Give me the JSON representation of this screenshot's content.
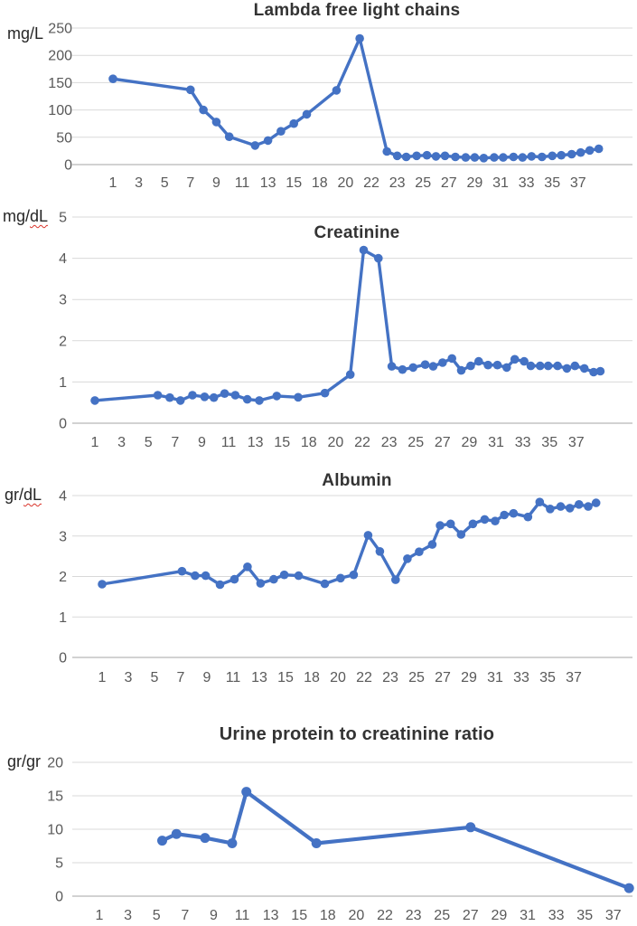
{
  "figure": {
    "background": "#ffffff",
    "accent_color": "#4472C4",
    "gridline_color": "#d9d9d9",
    "axisline_color": "#c4c4c4",
    "tick_color": "#595959",
    "title_color": "#333333",
    "squiggle_color": "#d9342b"
  },
  "chart_data": [
    {
      "type": "line",
      "title": "Lambda free light chains",
      "ylabel": "mg/L",
      "ylabel_plain": "mg/L",
      "ylabel_squiggle": "",
      "xlabel": "",
      "ylim": [
        0,
        250
      ],
      "y_ticks": [
        250,
        200,
        150,
        100,
        50,
        0
      ],
      "x_tick_labels": [
        "1",
        "3",
        "5",
        "7",
        "9",
        "11",
        "13",
        "15",
        "18",
        "20",
        "22",
        "23",
        "25",
        "27",
        "29",
        "31",
        "33",
        "35",
        "37"
      ],
      "grid": true,
      "legend": "none",
      "marker": "circle",
      "series": [
        {
          "name": "Lambda free light chains (mg/L)",
          "points": [
            [
              1,
              157
            ],
            [
              7,
              137
            ],
            [
              8,
              100
            ],
            [
              9,
              78
            ],
            [
              10,
              51
            ],
            [
              12,
              35
            ],
            [
              13,
              44
            ],
            [
              14,
              61
            ],
            [
              15,
              75
            ],
            [
              16,
              92
            ],
            [
              18.3,
              136
            ],
            [
              20.1,
              231
            ],
            [
              22.2,
              24
            ],
            [
              23,
              16
            ],
            [
              23.7,
              14
            ],
            [
              24.5,
              16
            ],
            [
              25.3,
              17
            ],
            [
              26,
              15
            ],
            [
              26.7,
              16
            ],
            [
              27.5,
              14
            ],
            [
              28.3,
              13
            ],
            [
              29,
              13
            ],
            [
              29.7,
              12
            ],
            [
              30.5,
              13
            ],
            [
              31.2,
              13
            ],
            [
              32,
              14
            ],
            [
              32.7,
              13
            ],
            [
              33.4,
              15
            ],
            [
              34.2,
              14
            ],
            [
              35,
              16
            ],
            [
              35.7,
              17
            ],
            [
              36.5,
              19
            ],
            [
              37.2,
              22
            ],
            [
              37.9,
              26
            ],
            [
              38.6,
              29
            ]
          ]
        }
      ]
    },
    {
      "type": "line",
      "title": "Creatinine",
      "ylabel": "mg/dL",
      "ylabel_plain": "mg/",
      "ylabel_squiggle": "dL",
      "xlabel": "",
      "ylim": [
        0,
        5
      ],
      "y_ticks": [
        5,
        4,
        3,
        2,
        1,
        0
      ],
      "x_tick_labels": [
        "1",
        "3",
        "5",
        "7",
        "9",
        "11",
        "13",
        "15",
        "18",
        "20",
        "22",
        "23",
        "25",
        "27",
        "29",
        "31",
        "33",
        "35",
        "37"
      ],
      "grid": true,
      "legend": "none",
      "marker": "circle",
      "series": [
        {
          "name": "Creatinine (mg/dL)",
          "points": [
            [
              1,
              0.55
            ],
            [
              5.7,
              0.68
            ],
            [
              6.6,
              0.62
            ],
            [
              7.4,
              0.55
            ],
            [
              8.3,
              0.68
            ],
            [
              9.2,
              0.64
            ],
            [
              9.9,
              0.62
            ],
            [
              10.7,
              0.72
            ],
            [
              11.5,
              0.68
            ],
            [
              12.4,
              0.58
            ],
            [
              13.3,
              0.55
            ],
            [
              14.6,
              0.66
            ],
            [
              16.2,
              0.63
            ],
            [
              18.2,
              0.73
            ],
            [
              20.1,
              1.18
            ],
            [
              21.1,
              4.2
            ],
            [
              22.2,
              4.0
            ],
            [
              23.2,
              1.38
            ],
            [
              24,
              1.3
            ],
            [
              24.8,
              1.35
            ],
            [
              25.7,
              1.42
            ],
            [
              26.3,
              1.38
            ],
            [
              27,
              1.47
            ],
            [
              27.7,
              1.57
            ],
            [
              28.4,
              1.28
            ],
            [
              29.1,
              1.39
            ],
            [
              29.7,
              1.5
            ],
            [
              30.4,
              1.41
            ],
            [
              31.1,
              1.41
            ],
            [
              31.8,
              1.35
            ],
            [
              32.4,
              1.55
            ],
            [
              33.1,
              1.5
            ],
            [
              33.6,
              1.39
            ],
            [
              34.3,
              1.39
            ],
            [
              34.9,
              1.39
            ],
            [
              35.6,
              1.39
            ],
            [
              36.3,
              1.33
            ],
            [
              36.9,
              1.39
            ],
            [
              37.6,
              1.33
            ],
            [
              38.3,
              1.24
            ],
            [
              38.8,
              1.26
            ]
          ]
        }
      ]
    },
    {
      "type": "line",
      "title": "Albumin",
      "ylabel": "gr/dL",
      "ylabel_plain": "gr/",
      "ylabel_squiggle": "dL",
      "xlabel": "",
      "ylim": [
        0,
        4
      ],
      "y_ticks": [
        4,
        3,
        2,
        1,
        0
      ],
      "x_tick_labels": [
        "1",
        "3",
        "5",
        "7",
        "9",
        "11",
        "13",
        "15",
        "18",
        "20",
        "22",
        "23",
        "25",
        "27",
        "29",
        "31",
        "33",
        "35",
        "37"
      ],
      "grid": true,
      "legend": "none",
      "marker": "circle",
      "series": [
        {
          "name": "Albumin (gr/dL)",
          "points": [
            [
              1,
              1.81
            ],
            [
              7.1,
              2.13
            ],
            [
              8.1,
              2.02
            ],
            [
              8.9,
              2.02
            ],
            [
              10,
              1.8
            ],
            [
              11.1,
              1.93
            ],
            [
              12.1,
              2.24
            ],
            [
              13.1,
              1.83
            ],
            [
              14.1,
              1.93
            ],
            [
              14.9,
              2.04
            ],
            [
              16,
              2.02
            ],
            [
              18,
              1.82
            ],
            [
              19.2,
              1.96
            ],
            [
              20.2,
              2.04
            ],
            [
              21.3,
              3.02
            ],
            [
              22.2,
              2.62
            ],
            [
              23.4,
              1.92
            ],
            [
              24.3,
              2.44
            ],
            [
              25.2,
              2.61
            ],
            [
              26.2,
              2.79
            ],
            [
              26.8,
              3.26
            ],
            [
              27.6,
              3.3
            ],
            [
              28.4,
              3.04
            ],
            [
              29.3,
              3.3
            ],
            [
              30.2,
              3.41
            ],
            [
              31,
              3.37
            ],
            [
              31.7,
              3.52
            ],
            [
              32.4,
              3.56
            ],
            [
              33.5,
              3.47
            ],
            [
              34.4,
              3.84
            ],
            [
              35.2,
              3.67
            ],
            [
              36,
              3.73
            ],
            [
              36.7,
              3.69
            ],
            [
              37.4,
              3.78
            ],
            [
              38.1,
              3.73
            ],
            [
              38.7,
              3.82
            ]
          ]
        }
      ]
    },
    {
      "type": "line",
      "title": "Urine protein to creatinine ratio",
      "ylabel": "gr/gr",
      "ylabel_plain": "gr/gr",
      "ylabel_squiggle": "",
      "xlabel": "",
      "ylim": [
        0,
        20
      ],
      "y_ticks": [
        20,
        15,
        10,
        5,
        0
      ],
      "x_tick_labels": [
        "1",
        "3",
        "5",
        "7",
        "9",
        "11",
        "13",
        "15",
        "18",
        "20",
        "22",
        "23",
        "25",
        "27",
        "29",
        "31",
        "33",
        "35",
        "37"
      ],
      "grid": true,
      "legend": "none",
      "marker": "circle",
      "series": [
        {
          "name": "Urine protein to creatinine ratio (gr/gr)",
          "points": [
            [
              5.4,
              8.3
            ],
            [
              6.4,
              9.3
            ],
            [
              8.4,
              8.7
            ],
            [
              10.3,
              7.9
            ],
            [
              11.3,
              15.6
            ],
            [
              16.2,
              7.9
            ],
            [
              27,
              10.3
            ],
            [
              38.1,
              1.2
            ]
          ]
        }
      ]
    }
  ]
}
